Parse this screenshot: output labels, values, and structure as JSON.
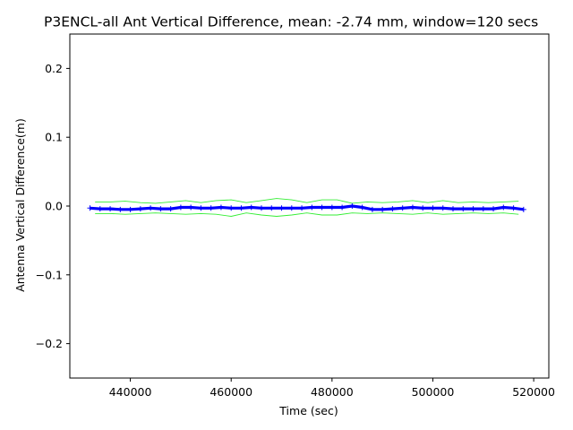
{
  "chart_data": {
    "type": "line",
    "title": "P3ENCL-all Ant Vertical Difference, mean: -2.74 mm, window=120 secs",
    "xlabel": "Time (sec)",
    "ylabel": "Antenna Vertical Difference(m)",
    "xlim": [
      428000,
      523000
    ],
    "ylim": [
      -0.25,
      0.25
    ],
    "xticks": [
      440000,
      460000,
      480000,
      500000,
      520000
    ],
    "xtick_labels": [
      "440000",
      "460000",
      "480000",
      "500000",
      "520000"
    ],
    "yticks": [
      -0.2,
      -0.1,
      0.0,
      0.1,
      0.2
    ],
    "ytick_labels": [
      "−0.2",
      "−0.1",
      "0.0",
      "0.1",
      "0.2"
    ],
    "grid": false,
    "colors": {
      "data": "#0000ff",
      "envelope": "#33ee33"
    },
    "series": [
      {
        "role": "measurement",
        "marker": "plus",
        "x": [
          432000,
          434000,
          436000,
          438000,
          440000,
          442000,
          444000,
          446000,
          448000,
          450000,
          452000,
          454000,
          456000,
          458000,
          460000,
          462000,
          464000,
          466000,
          468000,
          470000,
          472000,
          474000,
          476000,
          478000,
          480000,
          482000,
          484000,
          486000,
          488000,
          490000,
          492000,
          494000,
          496000,
          498000,
          500000,
          502000,
          504000,
          506000,
          508000,
          510000,
          512000,
          514000,
          516000,
          518000
        ],
        "y": [
          -0.003,
          -0.004,
          -0.004,
          -0.005,
          -0.005,
          -0.004,
          -0.003,
          -0.004,
          -0.004,
          -0.002,
          -0.002,
          -0.003,
          -0.003,
          -0.002,
          -0.003,
          -0.003,
          -0.002,
          -0.003,
          -0.003,
          -0.003,
          -0.003,
          -0.003,
          -0.002,
          -0.002,
          -0.002,
          -0.002,
          0.0,
          -0.002,
          -0.005,
          -0.005,
          -0.004,
          -0.003,
          -0.002,
          -0.003,
          -0.003,
          -0.003,
          -0.004,
          -0.004,
          -0.004,
          -0.004,
          -0.004,
          -0.002,
          -0.003,
          -0.005
        ]
      },
      {
        "role": "upper-envelope",
        "x": [
          433000,
          436000,
          439000,
          442000,
          445000,
          448000,
          451000,
          454000,
          457000,
          460000,
          463000,
          466000,
          469000,
          472000,
          475000,
          478000,
          481000,
          484000,
          487000,
          490000,
          493000,
          496000,
          499000,
          502000,
          505000,
          508000,
          511000,
          514000,
          517000
        ],
        "y": [
          0.006,
          0.006,
          0.007,
          0.005,
          0.004,
          0.006,
          0.008,
          0.005,
          0.008,
          0.009,
          0.005,
          0.008,
          0.011,
          0.009,
          0.005,
          0.009,
          0.009,
          0.004,
          0.006,
          0.005,
          0.006,
          0.008,
          0.005,
          0.008,
          0.005,
          0.006,
          0.005,
          0.006,
          0.007
        ]
      },
      {
        "role": "lower-envelope",
        "x": [
          433000,
          436000,
          439000,
          442000,
          445000,
          448000,
          451000,
          454000,
          457000,
          460000,
          463000,
          466000,
          469000,
          472000,
          475000,
          478000,
          481000,
          484000,
          487000,
          490000,
          493000,
          496000,
          499000,
          502000,
          505000,
          508000,
          511000,
          514000,
          517000
        ],
        "y": [
          -0.011,
          -0.011,
          -0.012,
          -0.011,
          -0.01,
          -0.011,
          -0.012,
          -0.011,
          -0.012,
          -0.015,
          -0.01,
          -0.013,
          -0.015,
          -0.013,
          -0.01,
          -0.013,
          -0.013,
          -0.01,
          -0.011,
          -0.01,
          -0.011,
          -0.012,
          -0.01,
          -0.012,
          -0.011,
          -0.01,
          -0.011,
          -0.01,
          -0.012
        ]
      }
    ]
  }
}
